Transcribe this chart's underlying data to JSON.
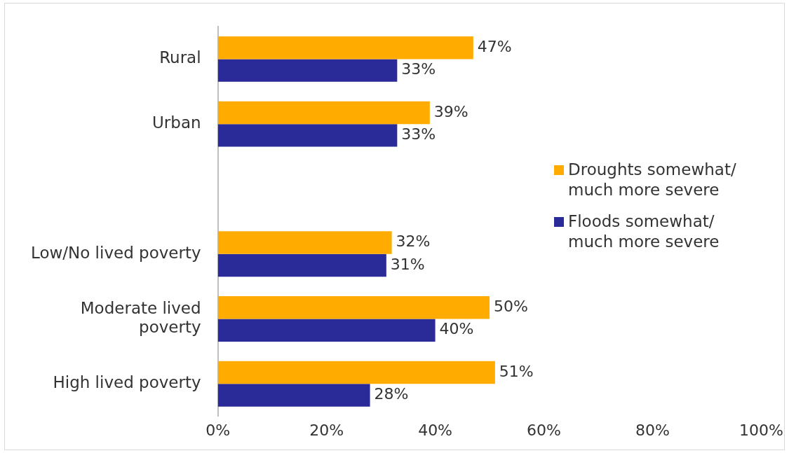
{
  "chart_data": {
    "type": "bar",
    "orientation": "horizontal",
    "categories": [
      "Rural",
      "Urban",
      null,
      "Low/No lived poverty",
      "Moderate lived poverty",
      "High lived poverty"
    ],
    "series": [
      {
        "name": "Droughts somewhat/ much more severe",
        "color": "#ffab00",
        "values": [
          47,
          39,
          null,
          32,
          50,
          51
        ],
        "value_labels": [
          "47%",
          "39%",
          null,
          "32%",
          "50%",
          "51%"
        ]
      },
      {
        "name": "Floods somewhat/ much more severe",
        "color": "#2b2a99",
        "values": [
          33,
          33,
          null,
          31,
          40,
          28
        ],
        "value_labels": [
          "33%",
          "33%",
          null,
          "31%",
          "40%",
          "28%"
        ]
      }
    ],
    "xlim": [
      0,
      100
    ],
    "xticks": [
      {
        "value": 0,
        "label": "0%"
      },
      {
        "value": 20,
        "label": "20%"
      },
      {
        "value": 40,
        "label": "40%"
      },
      {
        "value": 60,
        "label": "60%"
      },
      {
        "value": 80,
        "label": "80%"
      },
      {
        "value": 100,
        "label": "100%"
      }
    ],
    "grid": false,
    "legend": "right"
  }
}
